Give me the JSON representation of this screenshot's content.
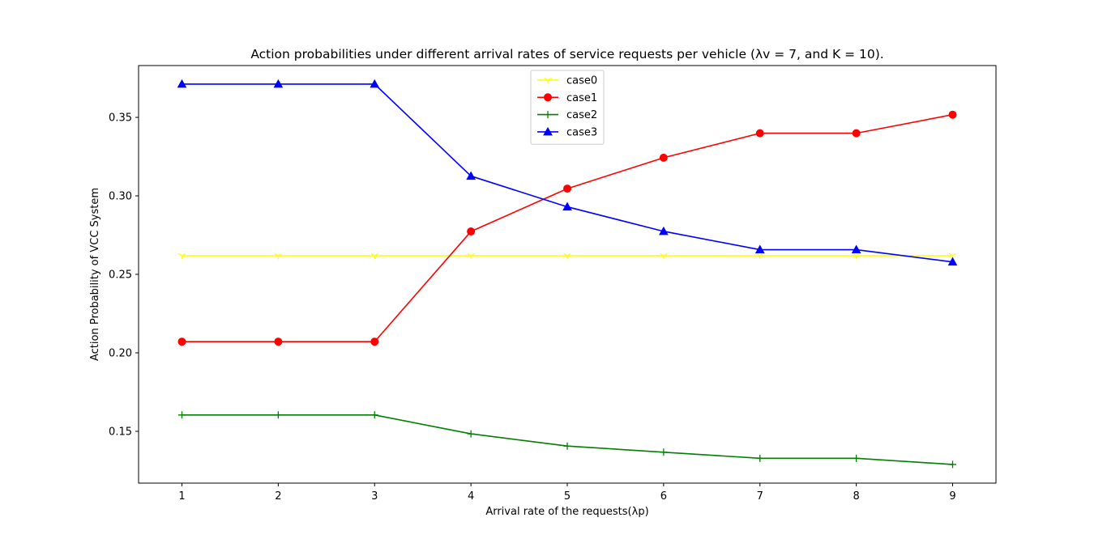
{
  "chart_data": {
    "type": "line",
    "title": "Action probabilities under different arrival rates of service requests per vehicle (λv = 7, and K = 10).",
    "xlabel": "Arrival rate of the requests(λp)",
    "ylabel": "Action Probability of VCC System",
    "x": [
      1,
      2,
      3,
      4,
      5,
      6,
      7,
      8,
      9
    ],
    "xlim": [
      0.55,
      9.45
    ],
    "ylim": [
      0.117,
      0.383
    ],
    "xticks": [
      1,
      2,
      3,
      4,
      5,
      6,
      7,
      8,
      9
    ],
    "yticks": [
      0.15,
      0.2,
      0.25,
      0.3,
      0.35
    ],
    "ytick_labels": [
      "0.15",
      "0.20",
      "0.25",
      "0.30",
      "0.35"
    ],
    "grid": false,
    "legend_position": "upper-center",
    "series": [
      {
        "name": "case0",
        "color": "#ffff00",
        "marker": "tri_down",
        "values": [
          0.2619,
          0.2619,
          0.2619,
          0.2619,
          0.2619,
          0.2619,
          0.2619,
          0.2619,
          0.2619
        ]
      },
      {
        "name": "case1",
        "color": "#ff0000",
        "marker": "circle",
        "values": [
          0.2071,
          0.2071,
          0.2071,
          0.2773,
          0.3046,
          0.3243,
          0.3399,
          0.3399,
          0.3517
        ]
      },
      {
        "name": "case2",
        "color": "#008000",
        "marker": "plus",
        "values": [
          0.1604,
          0.1604,
          0.1604,
          0.1484,
          0.1406,
          0.1367,
          0.1328,
          0.1328,
          0.1289
        ]
      },
      {
        "name": "case3",
        "color": "#0000ff",
        "marker": "triangle-up",
        "values": [
          0.3712,
          0.3712,
          0.3712,
          0.3126,
          0.293,
          0.2774,
          0.2657,
          0.2657,
          0.2579
        ]
      }
    ]
  }
}
